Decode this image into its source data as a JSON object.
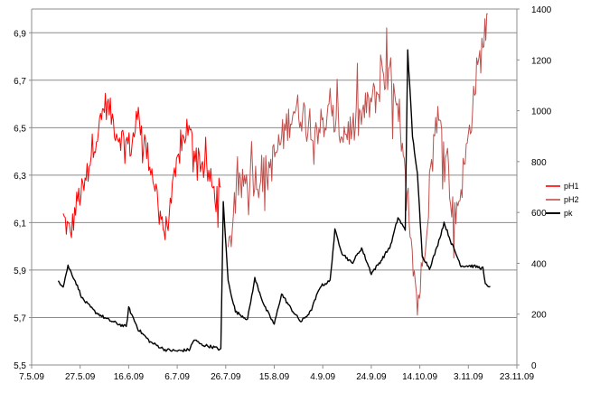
{
  "chart_data": {
    "type": "line",
    "title": "",
    "xlabel": "",
    "ylabel": "",
    "x_ticks": [
      "7.5.09",
      "27.5.09",
      "16.6.09",
      "6.7.09",
      "26.7.09",
      "15.8.09",
      "4.9.09",
      "24.9.09",
      "14.10.09",
      "3.11.09",
      "23.11.09"
    ],
    "y_left_ticks": [
      "5,5",
      "5,7",
      "5,9",
      "6,1",
      "6,3",
      "6,5",
      "6,7",
      "6,9"
    ],
    "y_right_ticks": [
      "0",
      "200",
      "400",
      "600",
      "800",
      "1000",
      "1200",
      "1400"
    ],
    "x_range": [
      "2009-05-07",
      "2009-11-23"
    ],
    "y_left_range": [
      5.5,
      7.0
    ],
    "y_right_range": [
      0,
      1400
    ],
    "grid": "horizontal",
    "legend_position": "right",
    "series": [
      {
        "name": "pH1",
        "axis": "left",
        "color": "#ff0000",
        "noise": 0.06,
        "points": [
          [
            "2009-05-20",
            6.12
          ],
          [
            "2009-05-23",
            6.05
          ],
          [
            "2009-05-26",
            6.2
          ],
          [
            "2009-05-29",
            6.25
          ],
          [
            "2009-06-01",
            6.42
          ],
          [
            "2009-06-04",
            6.5
          ],
          [
            "2009-06-06",
            6.6
          ],
          [
            "2009-06-08",
            6.58
          ],
          [
            "2009-06-11",
            6.48
          ],
          [
            "2009-06-14",
            6.45
          ],
          [
            "2009-06-17",
            6.42
          ],
          [
            "2009-06-20",
            6.55
          ],
          [
            "2009-06-23",
            6.42
          ],
          [
            "2009-06-26",
            6.3
          ],
          [
            "2009-06-29",
            6.15
          ],
          [
            "2009-07-01",
            6.05
          ],
          [
            "2009-07-04",
            6.22
          ],
          [
            "2009-07-07",
            6.4
          ],
          [
            "2009-07-10",
            6.5
          ],
          [
            "2009-07-13",
            6.42
          ],
          [
            "2009-07-16",
            6.35
          ],
          [
            "2009-07-19",
            6.3
          ],
          [
            "2009-07-22",
            6.2
          ],
          [
            "2009-07-24",
            6.25
          ]
        ]
      },
      {
        "name": "pH2",
        "axis": "left",
        "color": "#c0504d",
        "noise": 0.08,
        "points": [
          [
            "2009-07-27",
            5.95
          ],
          [
            "2009-07-30",
            6.2
          ],
          [
            "2009-08-04",
            6.3
          ],
          [
            "2009-08-09",
            6.28
          ],
          [
            "2009-08-14",
            6.35
          ],
          [
            "2009-08-18",
            6.45
          ],
          [
            "2009-08-23",
            6.58
          ],
          [
            "2009-08-28",
            6.55
          ],
          [
            "2009-09-02",
            6.5
          ],
          [
            "2009-09-07",
            6.55
          ],
          [
            "2009-09-12",
            6.48
          ],
          [
            "2009-09-17",
            6.5
          ],
          [
            "2009-09-22",
            6.58
          ],
          [
            "2009-09-27",
            6.65
          ],
          [
            "2009-10-02",
            6.72
          ],
          [
            "2009-10-06",
            6.45
          ],
          [
            "2009-10-10",
            6.1
          ],
          [
            "2009-10-13",
            5.75
          ],
          [
            "2009-10-15",
            5.9
          ],
          [
            "2009-10-18",
            6.25
          ],
          [
            "2009-10-21",
            6.55
          ],
          [
            "2009-10-25",
            6.4
          ],
          [
            "2009-10-28",
            6.1
          ],
          [
            "2009-10-31",
            6.25
          ],
          [
            "2009-11-03",
            6.45
          ],
          [
            "2009-11-06",
            6.7
          ],
          [
            "2009-11-09",
            6.85
          ],
          [
            "2009-11-11",
            6.98
          ]
        ]
      },
      {
        "name": "pk",
        "axis": "right",
        "color": "#000000",
        "noise": 6,
        "points": [
          [
            "2009-05-18",
            330
          ],
          [
            "2009-05-20",
            310
          ],
          [
            "2009-05-22",
            390
          ],
          [
            "2009-05-25",
            330
          ],
          [
            "2009-05-28",
            260
          ],
          [
            "2009-06-02",
            210
          ],
          [
            "2009-06-07",
            180
          ],
          [
            "2009-06-12",
            160
          ],
          [
            "2009-06-15",
            150
          ],
          [
            "2009-06-16",
            225
          ],
          [
            "2009-06-20",
            140
          ],
          [
            "2009-06-25",
            90
          ],
          [
            "2009-07-01",
            60
          ],
          [
            "2009-07-06",
            55
          ],
          [
            "2009-07-11",
            60
          ],
          [
            "2009-07-13",
            100
          ],
          [
            "2009-07-16",
            80
          ],
          [
            "2009-07-21",
            70
          ],
          [
            "2009-07-24",
            60
          ],
          [
            "2009-07-25",
            640
          ],
          [
            "2009-07-27",
            330
          ],
          [
            "2009-07-30",
            210
          ],
          [
            "2009-08-04",
            180
          ],
          [
            "2009-08-07",
            340
          ],
          [
            "2009-08-11",
            230
          ],
          [
            "2009-08-15",
            160
          ],
          [
            "2009-08-18",
            280
          ],
          [
            "2009-08-22",
            220
          ],
          [
            "2009-08-26",
            170
          ],
          [
            "2009-08-30",
            210
          ],
          [
            "2009-09-03",
            310
          ],
          [
            "2009-09-07",
            330
          ],
          [
            "2009-09-09",
            530
          ],
          [
            "2009-09-12",
            440
          ],
          [
            "2009-09-16",
            400
          ],
          [
            "2009-09-20",
            460
          ],
          [
            "2009-09-24",
            360
          ],
          [
            "2009-09-28",
            410
          ],
          [
            "2009-10-02",
            470
          ],
          [
            "2009-10-05",
            580
          ],
          [
            "2009-10-08",
            530
          ],
          [
            "2009-10-09",
            1240
          ],
          [
            "2009-10-11",
            900
          ],
          [
            "2009-10-13",
            750
          ],
          [
            "2009-10-15",
            430
          ],
          [
            "2009-10-18",
            380
          ],
          [
            "2009-10-21",
            460
          ],
          [
            "2009-10-24",
            560
          ],
          [
            "2009-10-27",
            480
          ],
          [
            "2009-10-31",
            390
          ],
          [
            "2009-11-04",
            390
          ],
          [
            "2009-11-07",
            385
          ],
          [
            "2009-11-09",
            380
          ],
          [
            "2009-11-10",
            315
          ],
          [
            "2009-11-12",
            310
          ]
        ]
      }
    ]
  }
}
